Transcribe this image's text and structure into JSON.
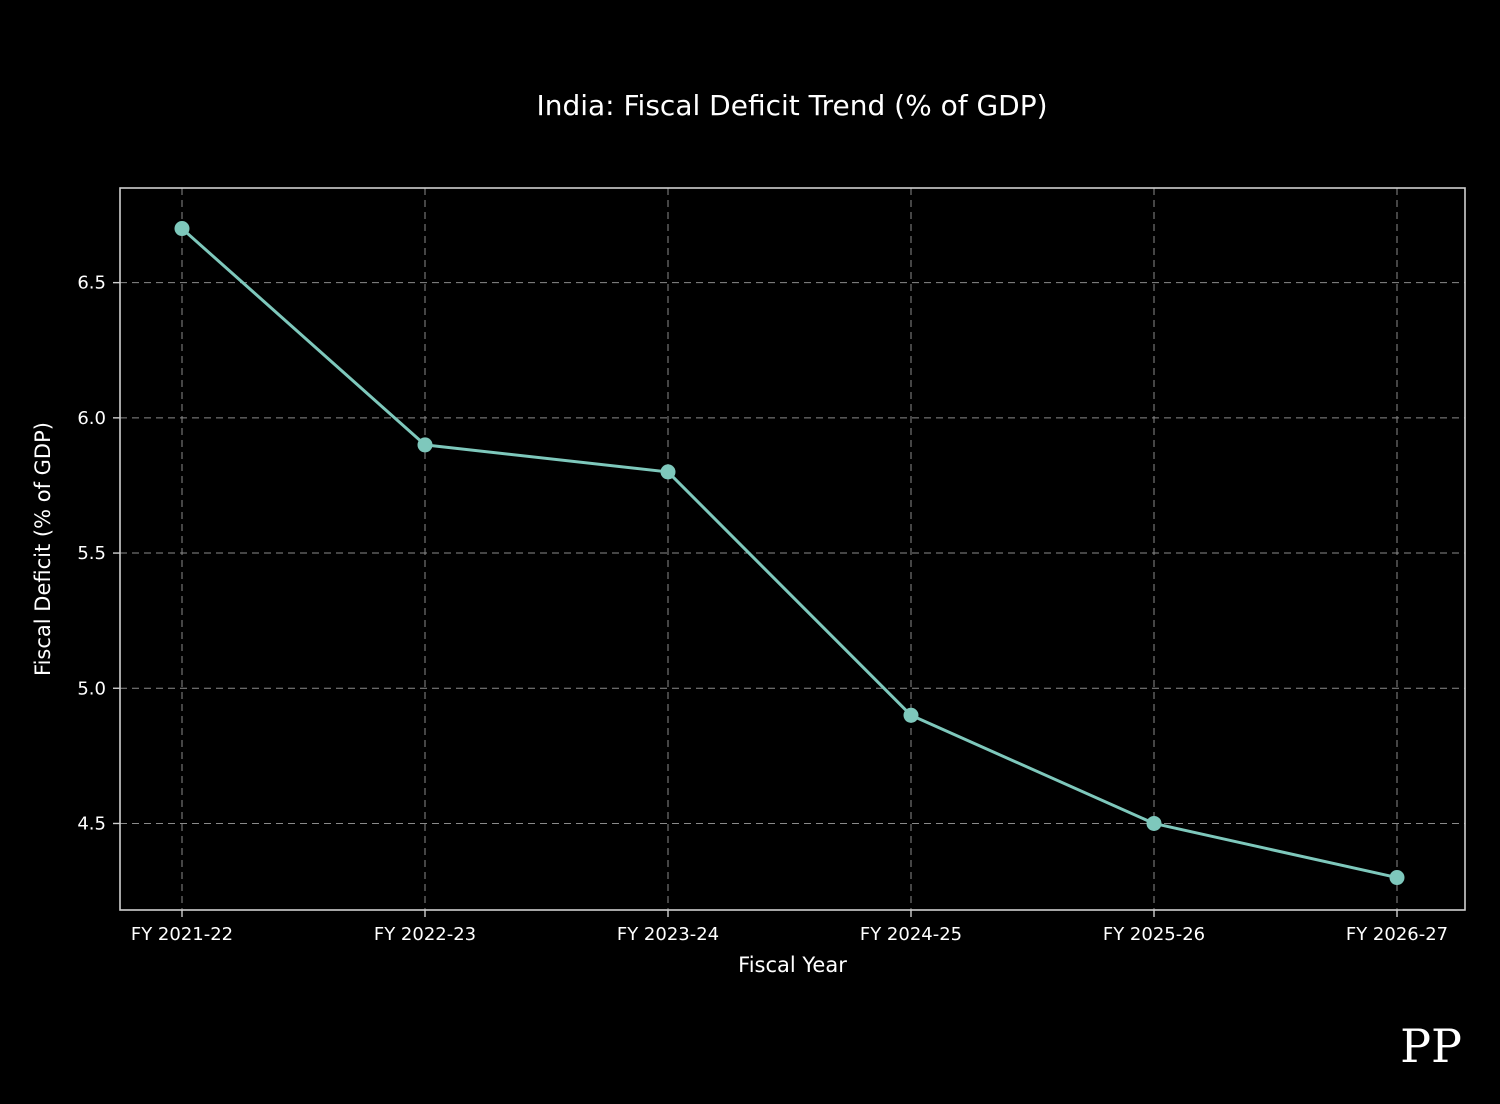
{
  "page": {
    "background": "#000000"
  },
  "watermark": "PP",
  "chart_data": {
    "type": "line",
    "title": "India: Fiscal Deficit Trend (% of GDP)",
    "xlabel": "Fiscal Year",
    "ylabel": "Fiscal Deficit (% of GDP)",
    "categories": [
      "FY 2021-22",
      "FY 2022-23",
      "FY 2023-24",
      "FY 2024-25",
      "FY 2025-26",
      "FY 2026-27"
    ],
    "series": [
      {
        "name": "Fiscal Deficit (% of GDP)",
        "values": [
          6.7,
          5.9,
          5.8,
          4.9,
          4.5,
          4.3
        ]
      }
    ],
    "yticks": [
      4.5,
      5.0,
      5.5,
      6.0,
      6.5
    ],
    "ylim": [
      4.18,
      6.85
    ],
    "grid": true,
    "grid_style": "dashed",
    "legend_position": "none",
    "colors": {
      "line": "#7ec8bc",
      "marker": "#7ec8bc",
      "grid": "#8a8a8a",
      "spine": "#cfcfcf",
      "text": "#ffffff",
      "background": "#000000"
    }
  }
}
